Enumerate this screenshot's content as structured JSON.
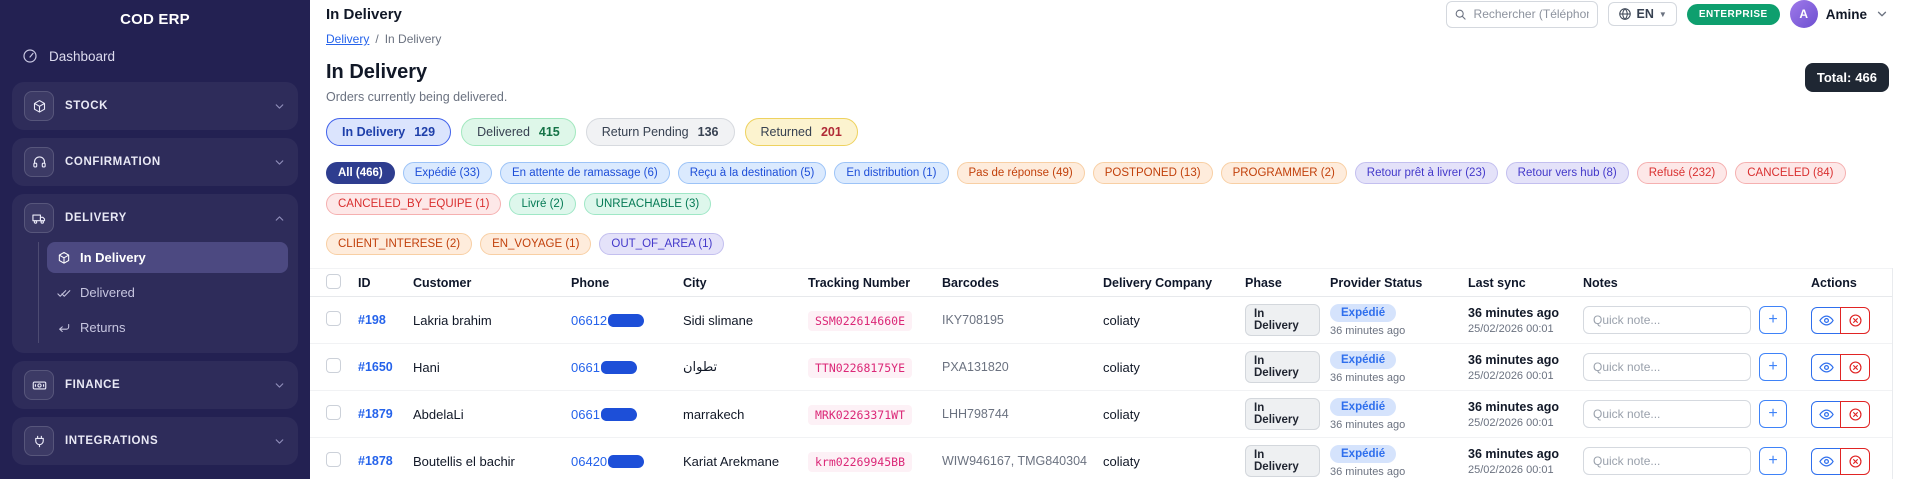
{
  "app": {
    "brand": "COD ERP"
  },
  "sidebar": {
    "dashboard_label": "Dashboard",
    "sections": [
      {
        "icon": "cube",
        "label": "STOCK",
        "expanded": false
      },
      {
        "icon": "headset",
        "label": "CONFIRMATION",
        "expanded": false
      },
      {
        "icon": "truck",
        "label": "DELIVERY",
        "expanded": true,
        "children": [
          {
            "icon": "cube",
            "label": "In Delivery",
            "active": true
          },
          {
            "icon": "double-check",
            "label": "Delivered",
            "active": false
          },
          {
            "icon": "return",
            "label": "Returns",
            "active": false
          }
        ]
      },
      {
        "icon": "banknote",
        "label": "FINANCE",
        "expanded": false
      },
      {
        "icon": "plug",
        "label": "INTEGRATIONS",
        "expanded": false
      }
    ]
  },
  "topbar": {
    "title": "In Delivery",
    "search_placeholder": "Rechercher (Téléphone, No",
    "language": "EN",
    "plan": "ENTERPRISE",
    "user_initial": "A",
    "user_name": "Amine"
  },
  "breadcrumb": {
    "parent": "Delivery",
    "separator": "/",
    "current": "In Delivery"
  },
  "page_header": {
    "title": "In Delivery",
    "subtitle": "Orders currently being delivered.",
    "total_label": "Total:",
    "total_value": "466"
  },
  "status_tabs": [
    {
      "label": "In Delivery",
      "count": "129",
      "variant": "blue",
      "active": true
    },
    {
      "label": "Delivered",
      "count": "415",
      "variant": "green",
      "active": false
    },
    {
      "label": "Return Pending",
      "count": "136",
      "variant": "gray",
      "active": false
    },
    {
      "label": "Returned",
      "count": "201",
      "variant": "yellow",
      "active": false
    }
  ],
  "filter_chips": [
    {
      "label": "All (466)",
      "variant": "active"
    },
    {
      "label": "Expédié (33)",
      "variant": "blue"
    },
    {
      "label": "En attente de ramassage (6)",
      "variant": "blue"
    },
    {
      "label": "Reçu à la destination (5)",
      "variant": "blue"
    },
    {
      "label": "En distribution (1)",
      "variant": "blue"
    },
    {
      "label": "Pas de réponse (49)",
      "variant": "orange"
    },
    {
      "label": "POSTPONED (13)",
      "variant": "orange"
    },
    {
      "label": "PROGRAMMER (2)",
      "variant": "orange"
    },
    {
      "label": "Retour prêt à livrer (23)",
      "variant": "violet"
    },
    {
      "label": "Retour vers hub (8)",
      "variant": "violet"
    },
    {
      "label": "Refusé (232)",
      "variant": "red"
    },
    {
      "label": "CANCELED (84)",
      "variant": "red"
    },
    {
      "label": "CANCELED_BY_EQUIPE (1)",
      "variant": "red"
    },
    {
      "label": "Livré (2)",
      "variant": "green"
    },
    {
      "label": "UNREACHABLE (3)",
      "variant": "green",
      "break_after": true
    },
    {
      "label": "CLIENT_INTERESE (2)",
      "variant": "orange"
    },
    {
      "label": "EN_VOYAGE (1)",
      "variant": "orange"
    },
    {
      "label": "OUT_OF_AREA (1)",
      "variant": "violet"
    }
  ],
  "table": {
    "columns": [
      "ID",
      "Customer",
      "Phone",
      "City",
      "Tracking Number",
      "Barcodes",
      "Delivery Company",
      "Phase",
      "Provider Status",
      "Last sync",
      "Notes",
      "Actions"
    ],
    "note_placeholder": "Quick note...",
    "rows": [
      {
        "id": "#198",
        "customer": "Lakria brahim",
        "phone_visible": "06612",
        "city": "Sidi slimane",
        "tracking": "SSM022614660E",
        "barcodes": "IKY708195",
        "company": "coliaty",
        "phase": "In Delivery",
        "provider_status": "Expédié",
        "provider_sync": "36 minutes ago",
        "last_sync": "36 minutes ago",
        "last_sync_date": "25/02/2026 00:01"
      },
      {
        "id": "#1650",
        "customer": "Hani",
        "phone_visible": "0661",
        "city": "تطوان",
        "tracking": "TTN02268175YE",
        "barcodes": "PXA131820",
        "company": "coliaty",
        "phase": "In Delivery",
        "provider_status": "Expédié",
        "provider_sync": "36 minutes ago",
        "last_sync": "36 minutes ago",
        "last_sync_date": "25/02/2026 00:01"
      },
      {
        "id": "#1879",
        "customer": "AbdelaLi",
        "phone_visible": "0661",
        "city": "marrakech",
        "tracking": "MRK02263371WT",
        "barcodes": "LHH798744",
        "company": "coliaty",
        "phase": "In Delivery",
        "provider_status": "Expédié",
        "provider_sync": "36 minutes ago",
        "last_sync": "36 minutes ago",
        "last_sync_date": "25/02/2026 00:01"
      },
      {
        "id": "#1878",
        "customer": "Boutellis el bachir",
        "phone_visible": "06420",
        "city": "Kariat Arekmane",
        "tracking": "krm02269945BB",
        "barcodes": "WIW946167, TMG840304",
        "company": "coliaty",
        "phase": "In Delivery",
        "provider_status": "Expédié",
        "provider_sync": "36 minutes ago",
        "last_sync": "36 minutes ago",
        "last_sync_date": "25/02/2026 00:01"
      }
    ]
  }
}
